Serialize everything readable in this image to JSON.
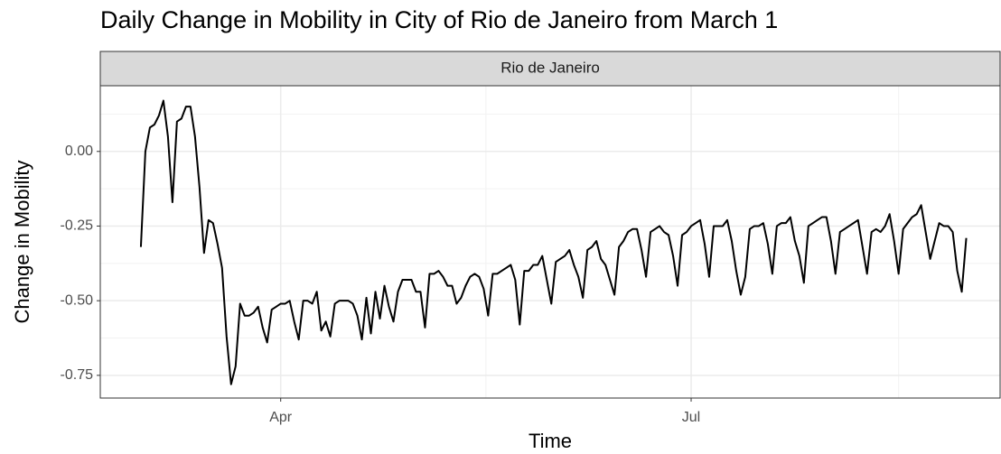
{
  "chart_data": {
    "type": "line",
    "title": "Daily Change in Mobility in City of Rio de Janeiro from March 1",
    "facet": "Rio de Janeiro",
    "x_label": "Time",
    "y_label": "Change in Mobility",
    "x": [
      0,
      1,
      2,
      3,
      4,
      5,
      6,
      7,
      8,
      9,
      10,
      11,
      12,
      13,
      14,
      15,
      16,
      17,
      18,
      19,
      20,
      21,
      22,
      23,
      24,
      25,
      26,
      27,
      28,
      29,
      30,
      31,
      32,
      33,
      34,
      35,
      36,
      37,
      38,
      39,
      40,
      41,
      42,
      43,
      44,
      45,
      46,
      47,
      48,
      49,
      50,
      51,
      52,
      53,
      54,
      55,
      56,
      57,
      58,
      59,
      60,
      61,
      62,
      63,
      64,
      65,
      66,
      67,
      68,
      69,
      70,
      71,
      72,
      73,
      74,
      75,
      76,
      77,
      78,
      79,
      80,
      81,
      82,
      83,
      84,
      85,
      86,
      87,
      88,
      89,
      90,
      91,
      92,
      93,
      94,
      95,
      96,
      97,
      98,
      99,
      100,
      101,
      102,
      103,
      104,
      105,
      106,
      107,
      108,
      109,
      110,
      111,
      112,
      113,
      114,
      115,
      116,
      117,
      118,
      119,
      120,
      121,
      122,
      123,
      124,
      125,
      126,
      127,
      128,
      129,
      130,
      131,
      132,
      133,
      134,
      135,
      136,
      137,
      138,
      139,
      140,
      141,
      142,
      143,
      144,
      145,
      146,
      147,
      148,
      149,
      150,
      151,
      152,
      153,
      154,
      155,
      156,
      157,
      158,
      159,
      160,
      161,
      162,
      163,
      164,
      165,
      166,
      167,
      168,
      169,
      170,
      171,
      172,
      173,
      174,
      175,
      176,
      177,
      178,
      179,
      180,
      181,
      182,
      183
    ],
    "series": [
      {
        "name": "Rio de Janeiro",
        "color": "#000000",
        "values": [
          -0.32,
          0.0,
          0.08,
          0.09,
          0.12,
          0.17,
          0.05,
          -0.17,
          0.1,
          0.11,
          0.15,
          0.15,
          0.05,
          -0.12,
          -0.34,
          -0.23,
          -0.24,
          -0.31,
          -0.39,
          -0.62,
          -0.78,
          -0.72,
          -0.51,
          -0.55,
          -0.55,
          -0.54,
          -0.52,
          -0.59,
          -0.64,
          -0.53,
          -0.52,
          -0.51,
          -0.51,
          -0.5,
          -0.57,
          -0.63,
          -0.5,
          -0.5,
          -0.51,
          -0.47,
          -0.6,
          -0.57,
          -0.62,
          -0.51,
          -0.5,
          -0.5,
          -0.5,
          -0.51,
          -0.55,
          -0.63,
          -0.49,
          -0.61,
          -0.47,
          -0.56,
          -0.45,
          -0.52,
          -0.57,
          -0.47,
          -0.43,
          -0.43,
          -0.43,
          -0.47,
          -0.47,
          -0.59,
          -0.41,
          -0.41,
          -0.4,
          -0.42,
          -0.45,
          -0.45,
          -0.51,
          -0.49,
          -0.45,
          -0.42,
          -0.41,
          -0.42,
          -0.46,
          -0.55,
          -0.41,
          -0.41,
          -0.4,
          -0.39,
          -0.38,
          -0.43,
          -0.58,
          -0.4,
          -0.4,
          -0.38,
          -0.38,
          -0.35,
          -0.43,
          -0.51,
          -0.37,
          -0.36,
          -0.35,
          -0.33,
          -0.38,
          -0.42,
          -0.49,
          -0.33,
          -0.32,
          -0.3,
          -0.36,
          -0.38,
          -0.43,
          -0.48,
          -0.32,
          -0.3,
          -0.27,
          -0.26,
          -0.26,
          -0.33,
          -0.42,
          -0.27,
          -0.26,
          -0.25,
          -0.27,
          -0.28,
          -0.35,
          -0.45,
          -0.28,
          -0.27,
          -0.25,
          -0.24,
          -0.23,
          -0.31,
          -0.42,
          -0.25,
          -0.25,
          -0.25,
          -0.23,
          -0.3,
          -0.4,
          -0.48,
          -0.42,
          -0.26,
          -0.25,
          -0.25,
          -0.24,
          -0.31,
          -0.41,
          -0.25,
          -0.24,
          -0.24,
          -0.22,
          -0.3,
          -0.35,
          -0.44,
          -0.25,
          -0.24,
          -0.23,
          -0.22,
          -0.22,
          -0.3,
          -0.41,
          -0.27,
          -0.26,
          -0.25,
          -0.24,
          -0.23,
          -0.32,
          -0.41,
          -0.27,
          -0.26,
          -0.27,
          -0.25,
          -0.21,
          -0.3,
          -0.41,
          -0.26,
          -0.24,
          -0.22,
          -0.21,
          -0.18,
          -0.27,
          -0.36,
          -0.3,
          -0.24,
          -0.25,
          -0.25,
          -0.27,
          -0.4,
          -0.47,
          -0.29
        ]
      }
    ],
    "xlim": [
      -9,
      190.5
    ],
    "xticks": [
      {
        "value": 31,
        "label": "Apr"
      },
      {
        "value": 122,
        "label": "Jul"
      }
    ],
    "xminor": [
      76.5,
      168
    ],
    "ylim": [
      -0.826,
      0.22
    ],
    "yticks": [
      {
        "value": 0,
        "label": "0.00"
      },
      {
        "value": -0.25,
        "label": "-0.25"
      },
      {
        "value": -0.5,
        "label": "-0.50"
      },
      {
        "value": -0.75,
        "label": "-0.75"
      }
    ],
    "yminor": [
      0.125,
      -0.125,
      -0.375,
      -0.625
    ],
    "grid": true
  }
}
